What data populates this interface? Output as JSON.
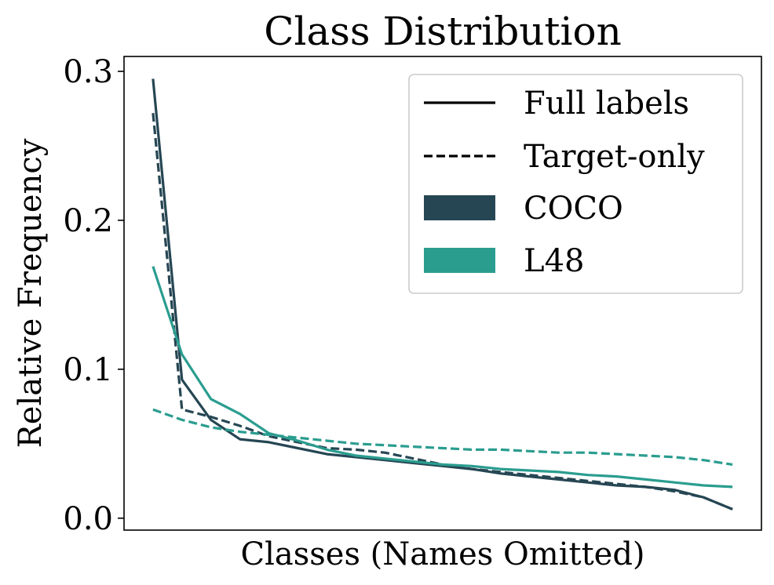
{
  "chart_data": {
    "type": "line",
    "title": "Class Distribution",
    "xlabel": "Classes (Names Omitted)",
    "ylabel": "Relative Frequency",
    "ylim": [
      -0.008,
      0.31
    ],
    "y_ticks": [
      0.0,
      0.1,
      0.2,
      0.3
    ],
    "y_tick_labels": [
      "0.0",
      "0.1",
      "0.2",
      "0.3"
    ],
    "x_ticks_shown": false,
    "grid": false,
    "legend_position": "top-right",
    "legend": {
      "style_entries": [
        {
          "label": "Full labels",
          "dash": "solid"
        },
        {
          "label": "Target-only",
          "dash": "dashed"
        }
      ],
      "dataset_entries": [
        {
          "label": "COCO",
          "color": "#264653"
        },
        {
          "label": "L48",
          "color": "#2a9d8f"
        }
      ]
    },
    "x": [
      0,
      1,
      2,
      3,
      4,
      5,
      6,
      7,
      8,
      9,
      10,
      11,
      12,
      13,
      14,
      15,
      16,
      17,
      18,
      19,
      20
    ],
    "xlim": [
      -1,
      21
    ],
    "series": [
      {
        "name": "COCO Full labels",
        "dataset": "COCO",
        "dash": "solid",
        "color": "#264653",
        "values": [
          0.295,
          0.093,
          0.066,
          0.053,
          0.051,
          0.047,
          0.043,
          0.041,
          0.039,
          0.037,
          0.035,
          0.033,
          0.03,
          0.028,
          0.026,
          0.024,
          0.022,
          0.021,
          0.019,
          0.014,
          0.006
        ]
      },
      {
        "name": "COCO Target-only",
        "dataset": "COCO",
        "dash": "dashed",
        "color": "#264653",
        "values": [
          0.272,
          0.073,
          0.068,
          0.062,
          0.055,
          0.051,
          0.047,
          0.046,
          0.044,
          0.04,
          0.036,
          0.033,
          0.031,
          0.029,
          0.027,
          0.025,
          0.023,
          0.021,
          0.018,
          0.014,
          0.006
        ]
      },
      {
        "name": "L48 Full labels",
        "dataset": "L48",
        "dash": "solid",
        "color": "#2a9d8f",
        "values": [
          0.169,
          0.11,
          0.08,
          0.07,
          0.057,
          0.052,
          0.046,
          0.042,
          0.04,
          0.038,
          0.036,
          0.035,
          0.033,
          0.032,
          0.031,
          0.029,
          0.028,
          0.026,
          0.024,
          0.022,
          0.021
        ]
      },
      {
        "name": "L48 Target-only",
        "dataset": "L48",
        "dash": "dashed",
        "color": "#2a9d8f",
        "values": [
          0.073,
          0.066,
          0.061,
          0.058,
          0.056,
          0.054,
          0.052,
          0.05,
          0.049,
          0.048,
          0.047,
          0.046,
          0.046,
          0.045,
          0.044,
          0.044,
          0.043,
          0.042,
          0.041,
          0.039,
          0.036
        ]
      }
    ]
  }
}
